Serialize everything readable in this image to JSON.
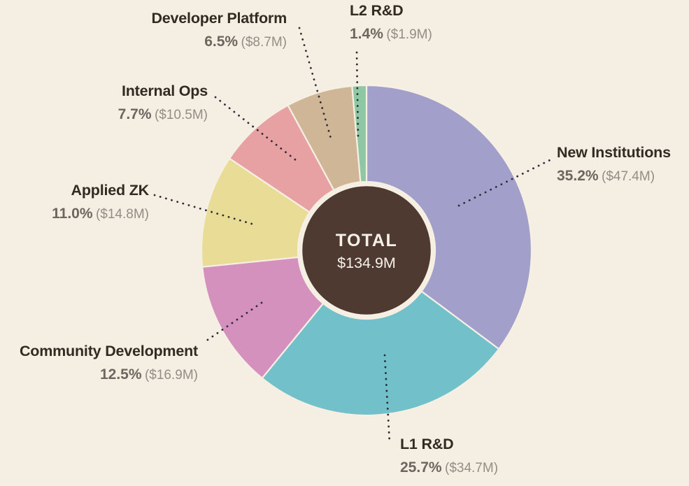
{
  "background_color": "#f4eee3",
  "chart_data": {
    "type": "pie",
    "subtype": "donut",
    "legend_position": "callout-labels",
    "total_label": "TOTAL",
    "total_value": "$134.9M",
    "center_color": "#4e3a31",
    "slice_gap_color": "#f6f0e4",
    "leader_dot_color": "#2d2c38",
    "label_name_color": "#332a22",
    "label_pct_color": "#6b6660",
    "label_amount_color": "#938d85",
    "slices": [
      {
        "label": "New Institutions",
        "pct": "35.2%",
        "amount": "($47.4M)",
        "value": 35.2,
        "color": "#a2a0ca"
      },
      {
        "label": "L1 R&D",
        "pct": "25.7%",
        "amount": "($34.7M)",
        "value": 25.7,
        "color": "#72c0c9"
      },
      {
        "label": "Community Development",
        "pct": "12.5%",
        "amount": "($16.9M)",
        "value": 12.5,
        "color": "#d491bd"
      },
      {
        "label": "Applied ZK",
        "pct": "11.0%",
        "amount": "($14.8M)",
        "value": 11.0,
        "color": "#e9dc96"
      },
      {
        "label": "Internal Ops",
        "pct": "7.7%",
        "amount": "($10.5M)",
        "value": 7.7,
        "color": "#e7a1a2"
      },
      {
        "label": "Developer Platform",
        "pct": "6.5%",
        "amount": "($8.7M)",
        "value": 6.5,
        "color": "#cfb697"
      },
      {
        "label": "L2 R&D",
        "pct": "1.4%",
        "amount": "($1.9M)",
        "value": 1.4,
        "color": "#8fc7a5"
      }
    ]
  }
}
